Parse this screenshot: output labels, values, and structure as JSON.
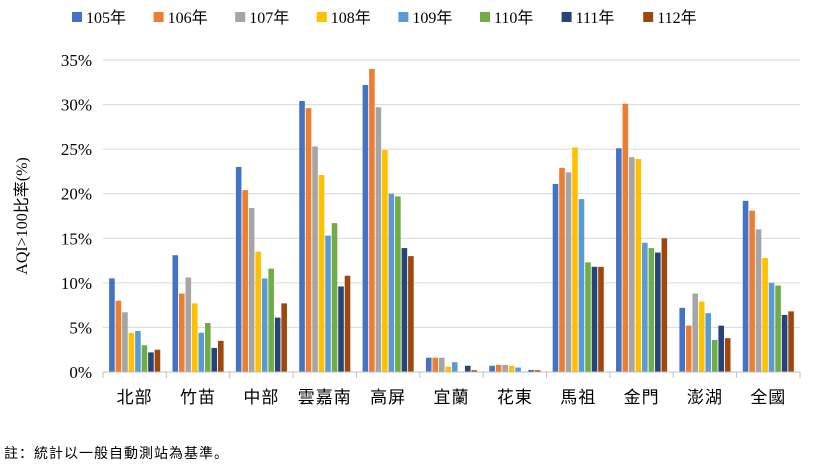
{
  "chart_data": {
    "type": "bar",
    "categories": [
      "北部",
      "竹苗",
      "中部",
      "雲嘉南",
      "高屏",
      "宜蘭",
      "花東",
      "馬祖",
      "金門",
      "澎湖",
      "全國"
    ],
    "series": [
      {
        "name": "105年",
        "color": "#4472C4",
        "values": [
          10.5,
          13.1,
          23.0,
          30.4,
          32.2,
          1.6,
          0.7,
          21.1,
          25.1,
          7.2,
          19.2
        ]
      },
      {
        "name": "106年",
        "color": "#ED7D31",
        "values": [
          8.0,
          8.8,
          20.4,
          29.6,
          34.0,
          1.6,
          0.8,
          22.9,
          30.1,
          5.2,
          18.1
        ]
      },
      {
        "name": "107年",
        "color": "#A5A5A5",
        "values": [
          6.7,
          10.6,
          18.4,
          25.3,
          29.7,
          1.6,
          0.8,
          22.4,
          24.1,
          8.8,
          16.0
        ]
      },
      {
        "name": "108年",
        "color": "#FFC000",
        "values": [
          4.4,
          7.7,
          13.5,
          22.1,
          24.9,
          0.6,
          0.7,
          25.2,
          23.9,
          7.9,
          12.8
        ]
      },
      {
        "name": "109年",
        "color": "#5B9BD5",
        "values": [
          4.6,
          4.4,
          10.5,
          15.3,
          20.0,
          1.1,
          0.5,
          19.4,
          14.5,
          6.6,
          10.0
        ]
      },
      {
        "name": "110年",
        "color": "#70AD47",
        "values": [
          3.0,
          5.5,
          11.6,
          16.7,
          19.7,
          0.0,
          0.0,
          12.3,
          13.9,
          3.6,
          9.7
        ]
      },
      {
        "name": "111年",
        "color": "#264478",
        "values": [
          2.2,
          2.7,
          6.1,
          9.6,
          13.9,
          0.7,
          0.2,
          11.8,
          13.4,
          5.2,
          6.4
        ]
      },
      {
        "name": "112年",
        "color": "#9E480E",
        "values": [
          2.5,
          3.5,
          7.7,
          10.8,
          13.0,
          0.2,
          0.2,
          11.8,
          15.0,
          3.8,
          6.8
        ]
      }
    ],
    "ylabel": "AQI>100比率(%)",
    "ylim": [
      0,
      35
    ],
    "ytick_step": 5,
    "ytick_labels": [
      "0%",
      "5%",
      "10%",
      "15%",
      "20%",
      "25%",
      "30%",
      "35%"
    ],
    "grid": true,
    "legend_position": "top"
  },
  "footnote": "註：統計以一般自動測站為基準。"
}
